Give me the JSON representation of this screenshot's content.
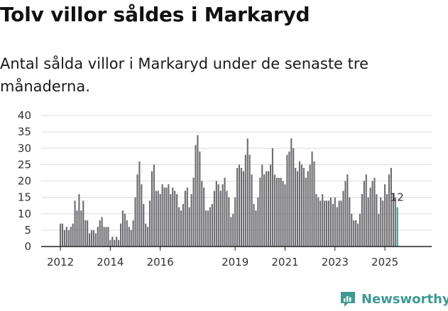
{
  "header": {
    "title": "Tolv villor såldes i Markaryd",
    "subtitle": "Antal sålda villor i Markaryd under de senaste tre månaderna."
  },
  "brand": {
    "name": "Newsworthy",
    "color": "#3d9a93"
  },
  "chart_data": {
    "type": "bar",
    "title": "Tolv villor såldes i Markaryd",
    "subtitle": "Antal sålda villor i Markaryd under de senaste tre månaderna.",
    "xlabel": "",
    "ylabel": "",
    "ylim": [
      0,
      40
    ],
    "y_ticks": [
      "0",
      "5",
      "10",
      "15",
      "20",
      "25",
      "30",
      "35",
      "40"
    ],
    "x_ticks": [
      "2012",
      "2014",
      "2016",
      "2019",
      "2021",
      "2023",
      "2025"
    ],
    "x_tick_positions": [
      0,
      24,
      48,
      84,
      108,
      132,
      156
    ],
    "grid": true,
    "bar_color": "#6c6b70",
    "highlight_color": "#3d9a93",
    "last_value_label": "12",
    "start": "2012-01",
    "values": [
      7,
      7,
      5,
      6,
      5,
      6,
      7,
      14,
      11,
      16,
      11,
      14,
      8,
      8,
      4,
      5,
      5,
      4,
      6,
      8,
      9,
      6,
      6,
      6,
      2,
      3,
      2,
      3,
      2,
      7,
      11,
      10,
      8,
      6,
      5,
      8,
      15,
      22,
      26,
      19,
      13,
      7,
      6,
      14,
      23,
      25,
      17,
      17,
      16,
      19,
      18,
      18,
      19,
      16,
      18,
      17,
      16,
      12,
      11,
      13,
      17,
      18,
      12,
      16,
      21,
      31,
      34,
      29,
      20,
      18,
      11,
      11,
      12,
      13,
      17,
      20,
      19,
      17,
      19,
      21,
      17,
      15,
      9,
      10,
      15,
      24,
      25,
      24,
      23,
      28,
      33,
      28,
      22,
      13,
      11,
      15,
      21,
      25,
      22,
      23,
      23,
      25,
      30,
      22,
      21,
      21,
      21,
      20,
      19,
      28,
      29,
      33,
      30,
      24,
      23,
      26,
      25,
      24,
      21,
      23,
      25,
      29,
      26,
      16,
      15,
      14,
      16,
      14,
      14,
      14,
      15,
      13,
      15,
      12,
      14,
      14,
      17,
      20,
      22,
      15,
      10,
      8,
      8,
      7,
      10,
      16,
      20,
      22,
      15,
      18,
      20,
      21,
      16,
      10,
      15,
      14,
      19,
      16,
      22,
      24,
      16,
      15,
      12
    ]
  }
}
